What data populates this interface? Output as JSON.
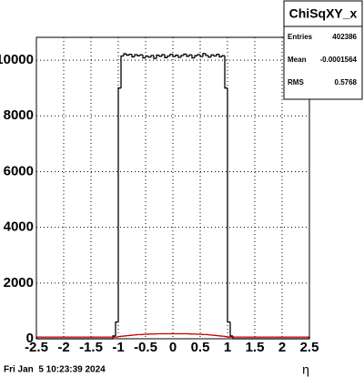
{
  "chart_data": {
    "type": "histogram",
    "bins": [
      -2.5,
      -2.45,
      -2.4,
      -2.35,
      -2.3,
      -2.25,
      -2.2,
      -2.15,
      -2.1,
      -2.05,
      -2,
      -1.95,
      -1.9,
      -1.85,
      -1.8,
      -1.75,
      -1.7,
      -1.65,
      -1.6,
      -1.55,
      -1.5,
      -1.45,
      -1.4,
      -1.35,
      -1.3,
      -1.25,
      -1.2,
      -1.15,
      -1.1,
      -1.05,
      -1,
      -0.95,
      -0.9,
      -0.85,
      -0.8,
      -0.75,
      -0.7,
      -0.65,
      -0.6,
      -0.55,
      -0.5,
      -0.45,
      -0.4,
      -0.35,
      -0.3,
      -0.25,
      -0.2,
      -0.15,
      -0.1,
      -0.05,
      0,
      0.05,
      0.1,
      0.15,
      0.2,
      0.25,
      0.3,
      0.35,
      0.4,
      0.45,
      0.5,
      0.55,
      0.6,
      0.65,
      0.7,
      0.75,
      0.8,
      0.85,
      0.9,
      0.95,
      1,
      1.05,
      1.1,
      1.15,
      1.2,
      1.25,
      1.3,
      1.35,
      1.4,
      1.45,
      1.5,
      1.55,
      1.6,
      1.65,
      1.7,
      1.75,
      1.8,
      1.85,
      1.9,
      1.95,
      2,
      2.05,
      2.1,
      2.15,
      2.2,
      2.25,
      2.3,
      2.35,
      2.4,
      2.45,
      2.5
    ],
    "series": [
      {
        "color": "#000000",
        "values": [
          0,
          0,
          0,
          0,
          0,
          0,
          0,
          0,
          0,
          0,
          0,
          0,
          0,
          0,
          0,
          0,
          0,
          0,
          0,
          0,
          0,
          0,
          0,
          0,
          0,
          0,
          0,
          0,
          100,
          600,
          9000,
          10150,
          10230,
          10180,
          10210,
          10120,
          10200,
          10160,
          10190,
          10080,
          10150,
          10110,
          10170,
          10060,
          10180,
          10140,
          10200,
          10090,
          10150,
          10210,
          10130,
          10180,
          10100,
          10170,
          10220,
          10140,
          10190,
          10080,
          10160,
          10200,
          10130,
          10240,
          10170,
          10110,
          10190,
          10150,
          10210,
          10120,
          10160,
          9000,
          600,
          100,
          0,
          0,
          0,
          0,
          0,
          0,
          0,
          0,
          0,
          0,
          0,
          0,
          0,
          0,
          0,
          0,
          0,
          0,
          0,
          0,
          0,
          0,
          0,
          0,
          0,
          0,
          0,
          0
        ]
      },
      {
        "color": "#cc0000",
        "values": [
          60,
          60,
          60,
          60,
          60,
          60,
          60,
          60,
          60,
          60,
          60,
          60,
          60,
          60,
          60,
          60,
          60,
          60,
          60,
          60,
          60,
          60,
          60,
          60,
          60,
          60,
          60,
          60,
          60,
          60,
          80,
          90,
          100,
          110,
          120,
          130,
          140,
          150,
          150,
          160,
          160,
          170,
          170,
          170,
          180,
          180,
          180,
          180,
          180,
          180,
          180,
          180,
          180,
          180,
          180,
          180,
          170,
          170,
          170,
          160,
          160,
          150,
          150,
          140,
          130,
          120,
          110,
          100,
          90,
          80,
          60,
          60,
          60,
          60,
          60,
          60,
          60,
          60,
          60,
          60,
          60,
          60,
          60,
          60,
          60,
          60,
          60,
          60,
          60,
          60,
          60,
          60,
          60,
          60,
          60,
          60,
          60,
          60,
          60,
          60
        ]
      }
    ],
    "xlabel": "η",
    "xlim": [
      -2.5,
      2.5
    ],
    "xticks": [
      -2.5,
      -2,
      -1.5,
      -1,
      -0.5,
      0,
      0.5,
      1,
      1.5,
      2,
      2.5
    ],
    "ylim": [
      0,
      10820
    ],
    "yticks": [
      0,
      2000,
      4000,
      6000,
      8000,
      10000
    ],
    "grid": true,
    "stats": {
      "title": "ChiSqXY_x",
      "rows": [
        [
          "Entries",
          402386
        ],
        [
          "Mean",
          -0.0001564
        ],
        [
          "RMS",
          0.5768
        ]
      ]
    },
    "footer": "Fri Jan  5 10:23:39 2024"
  }
}
